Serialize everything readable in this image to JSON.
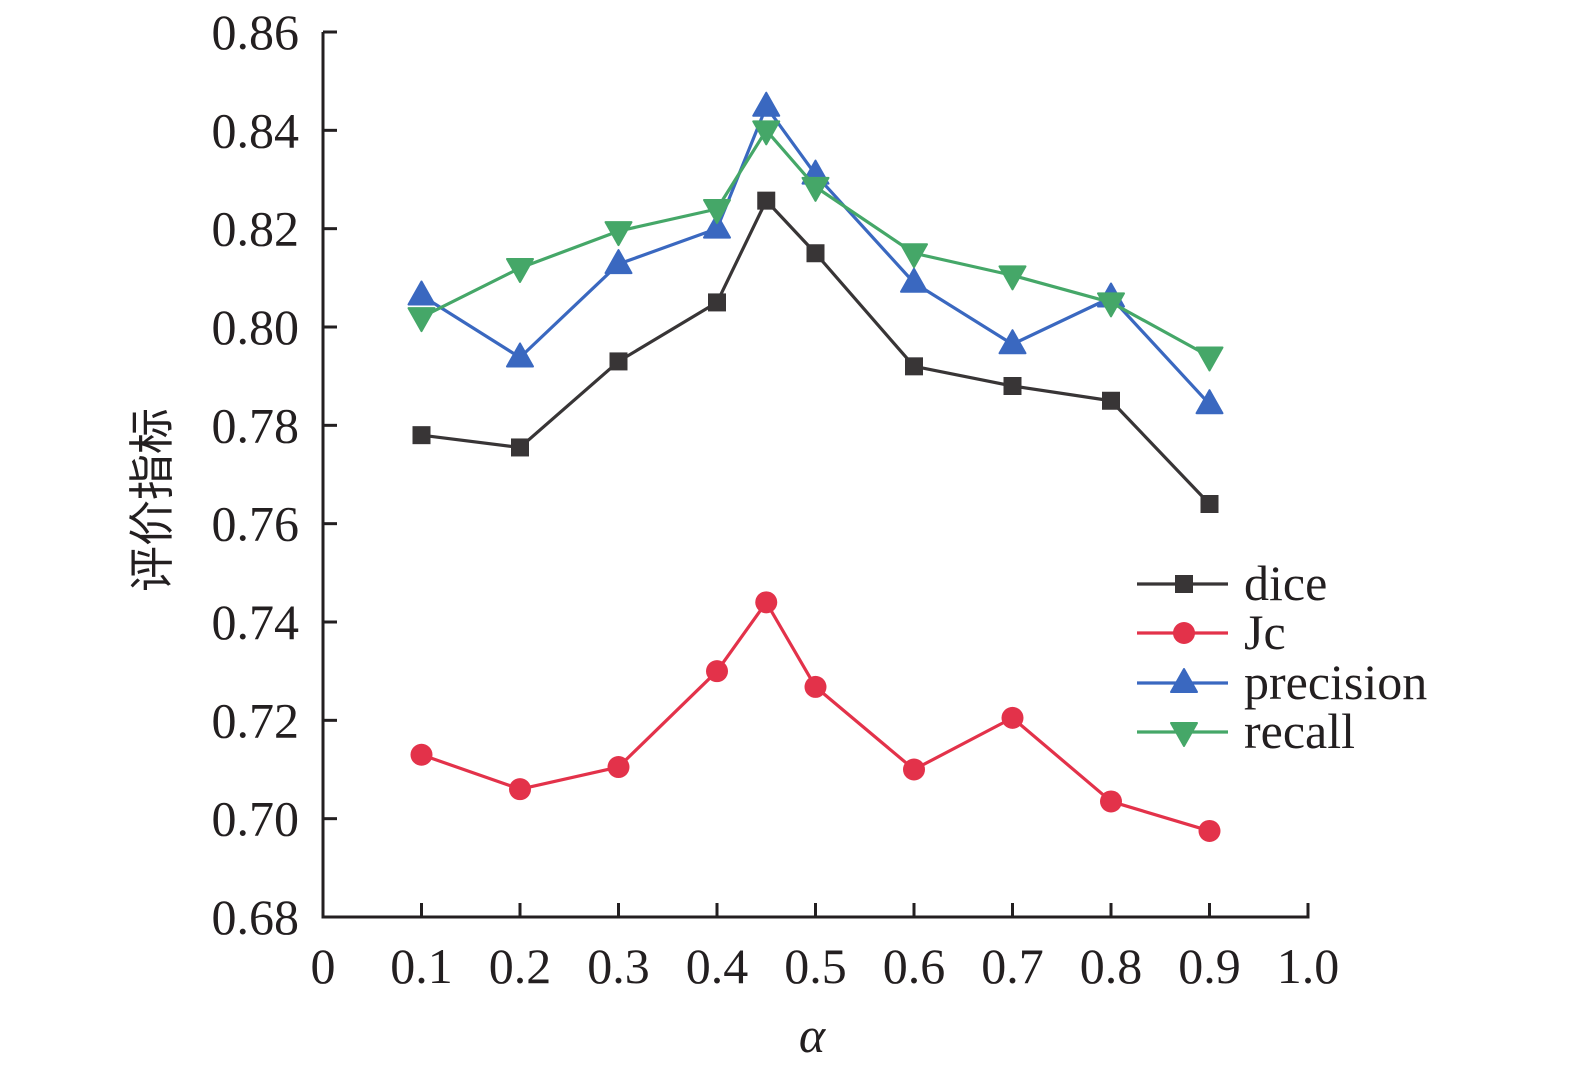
{
  "chart_data": {
    "type": "line",
    "title": "",
    "xlabel": "α",
    "ylabel": "评价指标",
    "xlim": [
      0,
      1.0
    ],
    "ylim": [
      0.68,
      0.86
    ],
    "grid": false,
    "legend_position": "right",
    "x_ticks": [
      "0",
      "0.1",
      "0.2",
      "0.3",
      "0.4",
      "0.5",
      "0.6",
      "0.7",
      "0.8",
      "0.9",
      "1.0"
    ],
    "y_ticks": [
      "0.68",
      "0.70",
      "0.72",
      "0.74",
      "0.76",
      "0.78",
      "0.80",
      "0.82",
      "0.84",
      "0.86"
    ],
    "x": [
      0.1,
      0.2,
      0.3,
      0.4,
      0.45,
      0.5,
      0.6,
      0.7,
      0.8,
      0.9
    ],
    "series": [
      {
        "name": "dice",
        "color": "#383536",
        "marker": "square",
        "values": [
          0.778,
          0.7755,
          0.793,
          0.805,
          0.8257,
          0.815,
          0.792,
          0.788,
          0.785,
          0.764
        ]
      },
      {
        "name": "Jc",
        "color": "#e3324a",
        "marker": "circle",
        "values": [
          0.713,
          0.706,
          0.7105,
          0.73,
          0.744,
          0.7268,
          0.71,
          0.7205,
          0.7035,
          0.6975
        ]
      },
      {
        "name": "precision",
        "color": "#3a68c0",
        "marker": "triangle-up",
        "values": [
          0.8064,
          0.7938,
          0.8128,
          0.82,
          0.8448,
          0.831,
          0.809,
          0.7965,
          0.806,
          0.7843
        ]
      },
      {
        "name": "recall",
        "color": "#45a768",
        "marker": "triangle-down",
        "values": [
          0.802,
          0.812,
          0.8195,
          0.824,
          0.84,
          0.8285,
          0.815,
          0.8105,
          0.805,
          0.794
        ]
      }
    ]
  }
}
